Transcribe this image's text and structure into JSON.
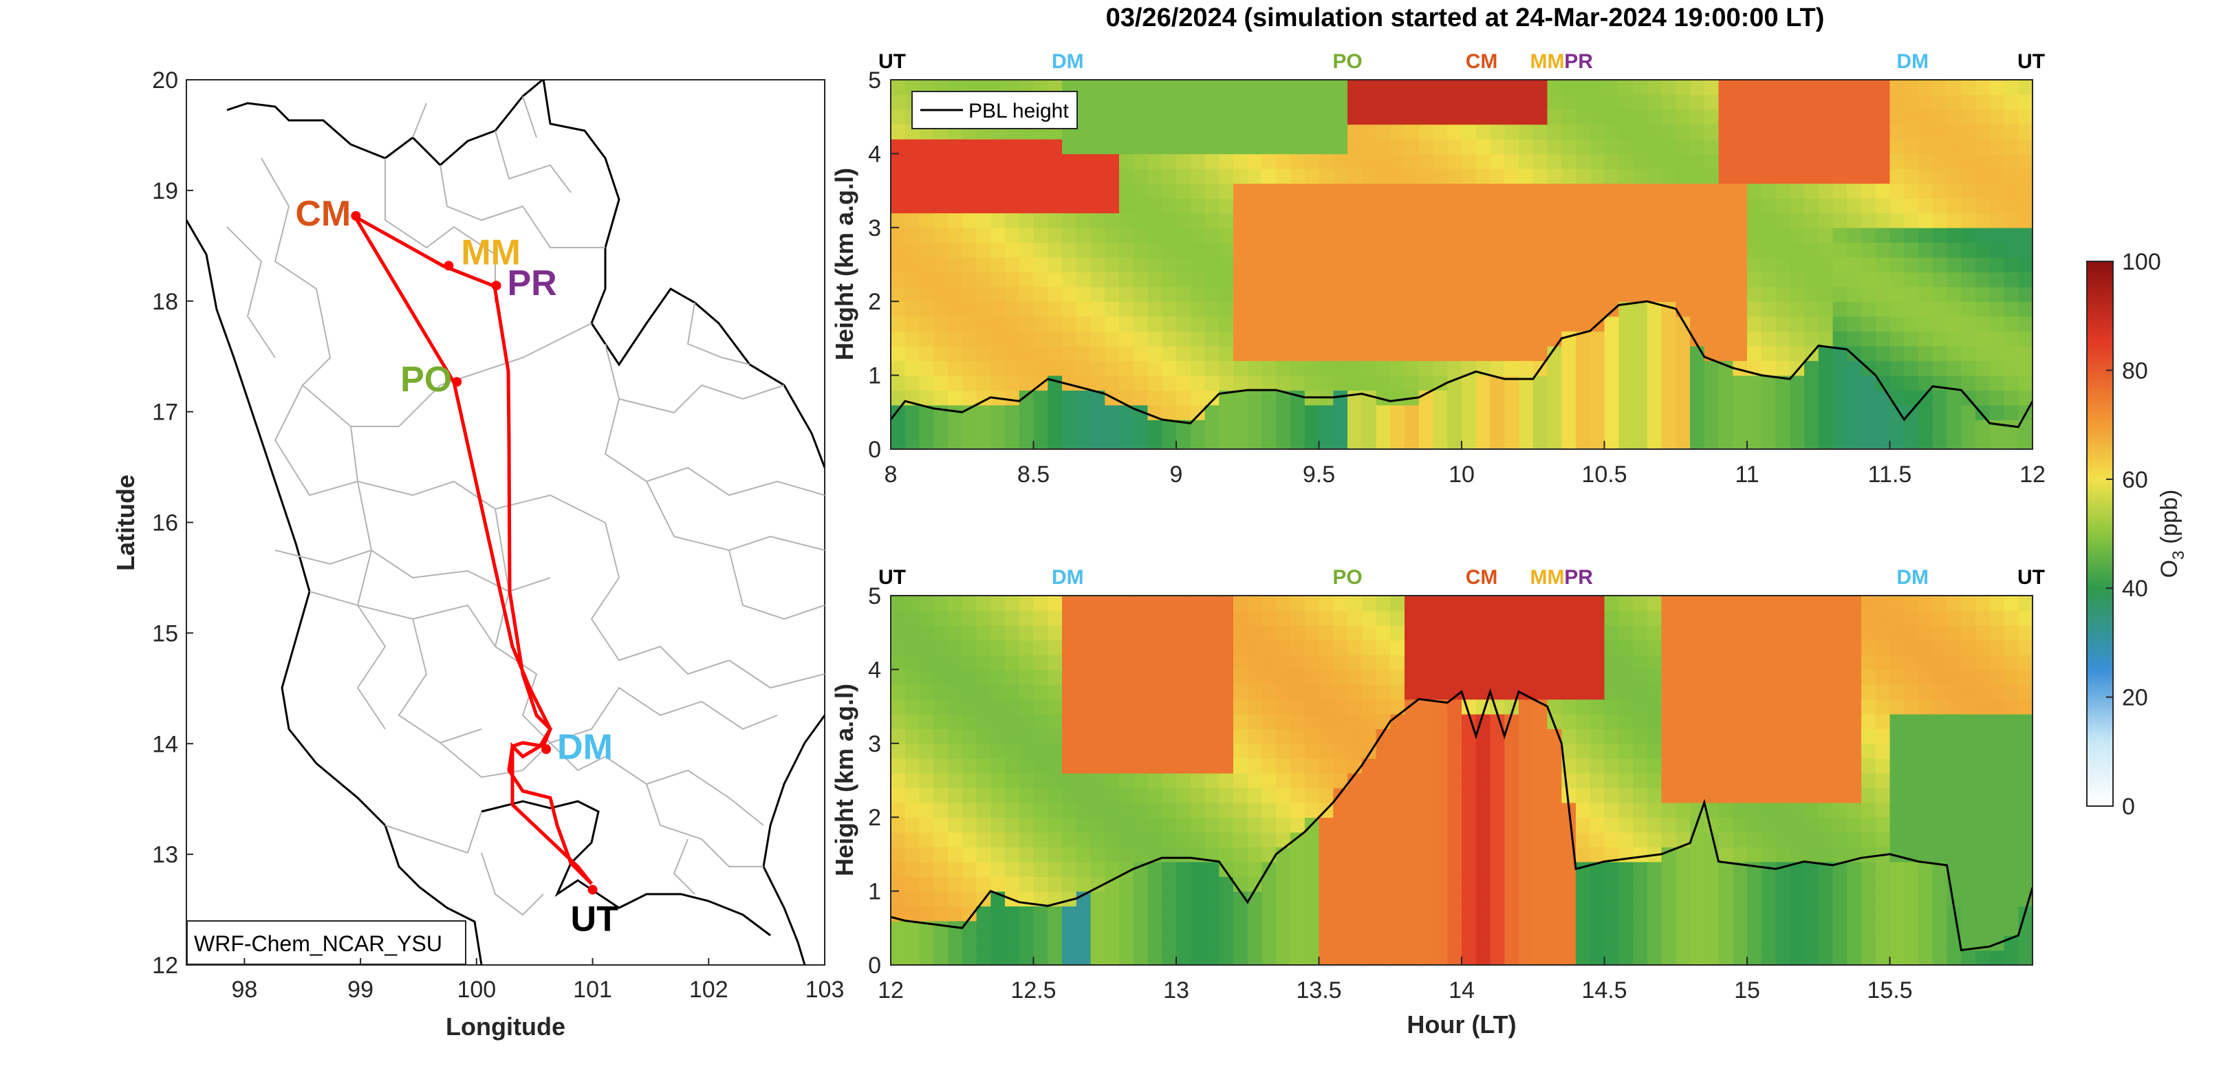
{
  "title": "03/26/2024 (simulation started at 24-Mar-2024 19:00:00 LT)",
  "colors": {
    "CM": "#D95319",
    "MM": "#EDB120",
    "PR": "#7E2F8E",
    "PO": "#77AC30",
    "DM": "#4DBEEE",
    "UT": "#000000",
    "track": "#FF0000",
    "pbl": "#000000"
  },
  "map": {
    "xlabel": "Longitude",
    "ylabel": "Latitude",
    "xticks": [
      "98",
      "99",
      "100",
      "101",
      "102",
      "103"
    ],
    "yticks": [
      "12",
      "13",
      "14",
      "15",
      "16",
      "17",
      "18",
      "19",
      "20"
    ],
    "xlim": [
      97.5,
      103
    ],
    "ylim": [
      12,
      20
    ],
    "model_label": "WRF-Chem_NCAR_YSU",
    "sites": [
      {
        "name": "CM",
        "lon": 98.96,
        "lat": 18.77
      },
      {
        "name": "MM",
        "lon": 99.76,
        "lat": 18.32
      },
      {
        "name": "PR",
        "lon": 100.17,
        "lat": 18.14
      },
      {
        "name": "PO",
        "lon": 99.83,
        "lat": 17.27
      },
      {
        "name": "DM",
        "lon": 100.6,
        "lat": 13.95
      },
      {
        "name": "UT",
        "lon": 101.0,
        "lat": 12.68
      }
    ]
  },
  "colorbar": {
    "label_main": "O",
    "label_sub": "3",
    "label_unit": " (ppb)",
    "ticks": [
      "0",
      "20",
      "40",
      "60",
      "80",
      "100"
    ]
  },
  "panels": [
    {
      "xticks": [
        "8",
        "8.5",
        "9",
        "9.5",
        "10",
        "10.5",
        "11",
        "11.5",
        "12"
      ],
      "xlim": [
        8,
        12
      ],
      "site_labels": [
        {
          "name": "UT",
          "hour": 8.0
        },
        {
          "name": "DM",
          "hour": 8.62
        },
        {
          "name": "PO",
          "hour": 9.6
        },
        {
          "name": "CM",
          "hour": 10.07
        },
        {
          "name": "MM",
          "hour": 10.3
        },
        {
          "name": "PR",
          "hour": 10.41
        },
        {
          "name": "DM",
          "hour": 11.58
        },
        {
          "name": "UT",
          "hour": 11.97
        }
      ]
    },
    {
      "xticks": [
        "12",
        "12.5",
        "13",
        "13.5",
        "14",
        "14.5",
        "15",
        "15.5"
      ],
      "xlim": [
        12,
        16
      ],
      "site_labels": [
        {
          "name": "UT",
          "hour": 12.0
        },
        {
          "name": "DM",
          "hour": 12.62
        },
        {
          "name": "PO",
          "hour": 13.6
        },
        {
          "name": "CM",
          "hour": 14.07
        },
        {
          "name": "MM",
          "hour": 14.3
        },
        {
          "name": "PR",
          "hour": 14.41
        },
        {
          "name": "DM",
          "hour": 15.58
        },
        {
          "name": "UT",
          "hour": 15.97
        }
      ]
    }
  ],
  "shared": {
    "ylabel": "Height (km a.g.l)",
    "yticks": [
      "0",
      "1",
      "2",
      "3",
      "4",
      "5"
    ],
    "xlabel": "Hour (LT)",
    "legend_label": "PBL height"
  },
  "chart_data": [
    {
      "type": "heatmap",
      "title": "03/26/2024 (simulation started at 24-Mar-2024 19:00:00 LT)",
      "xlabel": "",
      "ylabel": "Height (km a.g.l)",
      "xlim": [
        8,
        12
      ],
      "ylim": [
        0,
        5
      ],
      "clim": [
        0,
        100
      ],
      "colorbar_label": "O3 (ppb)",
      "series": [
        {
          "name": "PBL height",
          "type": "line",
          "x": [
            8.0,
            8.05,
            8.15,
            8.25,
            8.35,
            8.45,
            8.55,
            8.65,
            8.75,
            8.85,
            8.95,
            9.05,
            9.15,
            9.25,
            9.35,
            9.45,
            9.55,
            9.65,
            9.75,
            9.85,
            9.95,
            10.05,
            10.15,
            10.25,
            10.35,
            10.45,
            10.55,
            10.65,
            10.75,
            10.85,
            10.95,
            11.05,
            11.15,
            11.25,
            11.35,
            11.45,
            11.55,
            11.65,
            11.75,
            11.85,
            11.95,
            12.0
          ],
          "values": [
            0.4,
            0.65,
            0.55,
            0.5,
            0.7,
            0.65,
            0.95,
            0.85,
            0.75,
            0.55,
            0.4,
            0.35,
            0.75,
            0.8,
            0.8,
            0.7,
            0.7,
            0.75,
            0.65,
            0.7,
            0.9,
            1.05,
            0.95,
            0.95,
            1.5,
            1.6,
            1.95,
            2.0,
            1.9,
            1.25,
            1.1,
            1.0,
            0.95,
            1.4,
            1.35,
            1.0,
            0.4,
            0.85,
            0.8,
            0.35,
            0.3,
            0.65
          ]
        }
      ]
    },
    {
      "type": "heatmap",
      "title": "",
      "xlabel": "Hour (LT)",
      "ylabel": "Height (km a.g.l)",
      "xlim": [
        12,
        16
      ],
      "ylim": [
        0,
        5
      ],
      "clim": [
        0,
        100
      ],
      "colorbar_label": "O3 (ppb)",
      "series": [
        {
          "name": "PBL height",
          "type": "line",
          "x": [
            12.0,
            12.05,
            12.15,
            12.25,
            12.35,
            12.45,
            12.55,
            12.65,
            12.75,
            12.85,
            12.95,
            13.05,
            13.15,
            13.25,
            13.35,
            13.45,
            13.55,
            13.65,
            13.75,
            13.85,
            13.95,
            14.0,
            14.05,
            14.1,
            14.15,
            14.2,
            14.25,
            14.3,
            14.35,
            14.4,
            14.5,
            14.6,
            14.7,
            14.8,
            14.85,
            14.9,
            15.0,
            15.1,
            15.2,
            15.3,
            15.4,
            15.5,
            15.6,
            15.7,
            15.75,
            15.85,
            15.95,
            16.0
          ],
          "values": [
            0.65,
            0.6,
            0.55,
            0.5,
            1.0,
            0.85,
            0.8,
            0.9,
            1.1,
            1.3,
            1.45,
            1.45,
            1.4,
            0.85,
            1.5,
            1.8,
            2.2,
            2.7,
            3.3,
            3.6,
            3.55,
            3.7,
            3.1,
            3.7,
            3.1,
            3.7,
            3.6,
            3.5,
            3.0,
            1.3,
            1.4,
            1.45,
            1.5,
            1.65,
            2.2,
            1.4,
            1.35,
            1.3,
            1.4,
            1.35,
            1.45,
            1.5,
            1.4,
            1.35,
            0.2,
            0.25,
            0.4,
            1.05
          ]
        }
      ]
    }
  ]
}
